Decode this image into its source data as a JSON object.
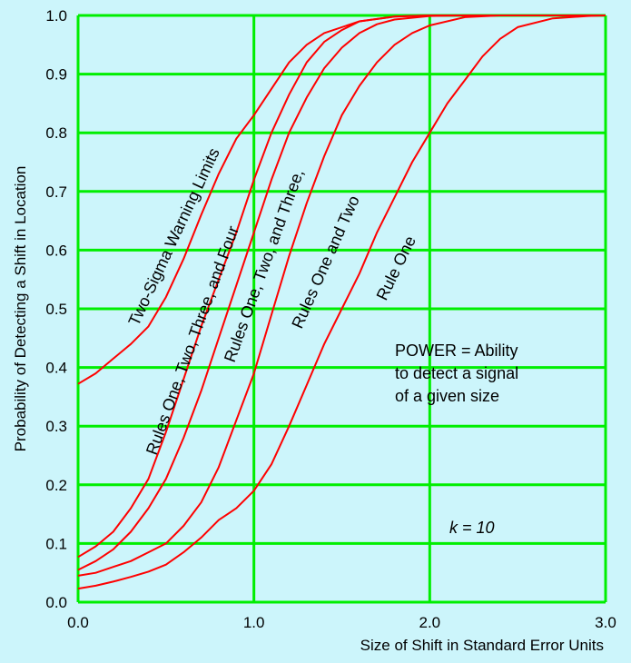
{
  "chart_data": {
    "type": "line",
    "xlabel": "Size of Shift in Standard Error Units",
    "ylabel": "Probability of Detecting a Shift in Location",
    "xlim": [
      0,
      3
    ],
    "ylim": [
      0,
      1
    ],
    "x_ticks": [
      "0.0",
      "1.0",
      "2.0",
      "3.0"
    ],
    "y_ticks": [
      "0.0",
      "0.1",
      "0.2",
      "0.3",
      "0.4",
      "0.5",
      "0.6",
      "0.7",
      "0.8",
      "0.9",
      "1.0"
    ],
    "grid": true,
    "line_color": "#ff0000",
    "grid_color": "#00ee00",
    "series": [
      {
        "name": "Two-Sigma Warning Limits",
        "points": [
          [
            0,
            0.372
          ],
          [
            0.1,
            0.39
          ],
          [
            0.2,
            0.415
          ],
          [
            0.3,
            0.44
          ],
          [
            0.4,
            0.47
          ],
          [
            0.5,
            0.52
          ],
          [
            0.6,
            0.585
          ],
          [
            0.7,
            0.66
          ],
          [
            0.8,
            0.73
          ],
          [
            0.9,
            0.79
          ],
          [
            1.0,
            0.83
          ],
          [
            1.1,
            0.875
          ],
          [
            1.2,
            0.92
          ],
          [
            1.3,
            0.95
          ],
          [
            1.4,
            0.97
          ],
          [
            1.6,
            0.99
          ],
          [
            1.8,
            0.998
          ],
          [
            2.0,
            1.0
          ],
          [
            3.0,
            1.0
          ]
        ]
      },
      {
        "name": "Rules One, Two, Three, and Four",
        "points": [
          [
            0,
            0.077
          ],
          [
            0.1,
            0.095
          ],
          [
            0.2,
            0.12
          ],
          [
            0.3,
            0.16
          ],
          [
            0.4,
            0.21
          ],
          [
            0.5,
            0.29
          ],
          [
            0.6,
            0.38
          ],
          [
            0.7,
            0.47
          ],
          [
            0.8,
            0.55
          ],
          [
            0.9,
            0.63
          ],
          [
            1.0,
            0.72
          ],
          [
            1.1,
            0.8
          ],
          [
            1.2,
            0.865
          ],
          [
            1.3,
            0.92
          ],
          [
            1.4,
            0.955
          ],
          [
            1.5,
            0.975
          ],
          [
            1.6,
            0.99
          ],
          [
            1.8,
            0.998
          ],
          [
            2.0,
            1.0
          ],
          [
            3.0,
            1.0
          ]
        ]
      },
      {
        "name": "Rules One, Two, and Three,",
        "points": [
          [
            0,
            0.055
          ],
          [
            0.1,
            0.07
          ],
          [
            0.2,
            0.09
          ],
          [
            0.3,
            0.12
          ],
          [
            0.4,
            0.16
          ],
          [
            0.5,
            0.21
          ],
          [
            0.6,
            0.28
          ],
          [
            0.7,
            0.36
          ],
          [
            0.8,
            0.45
          ],
          [
            0.9,
            0.54
          ],
          [
            1.0,
            0.63
          ],
          [
            1.1,
            0.72
          ],
          [
            1.2,
            0.8
          ],
          [
            1.3,
            0.86
          ],
          [
            1.4,
            0.91
          ],
          [
            1.5,
            0.945
          ],
          [
            1.6,
            0.97
          ],
          [
            1.7,
            0.985
          ],
          [
            1.8,
            0.993
          ],
          [
            2.0,
            0.999
          ],
          [
            2.2,
            1.0
          ],
          [
            3.0,
            1.0
          ]
        ]
      },
      {
        "name": "Rules One and Two",
        "points": [
          [
            0,
            0.045
          ],
          [
            0.1,
            0.05
          ],
          [
            0.2,
            0.06
          ],
          [
            0.3,
            0.07
          ],
          [
            0.4,
            0.085
          ],
          [
            0.5,
            0.1
          ],
          [
            0.6,
            0.13
          ],
          [
            0.7,
            0.17
          ],
          [
            0.8,
            0.23
          ],
          [
            0.9,
            0.31
          ],
          [
            1.0,
            0.39
          ],
          [
            1.1,
            0.49
          ],
          [
            1.2,
            0.59
          ],
          [
            1.3,
            0.68
          ],
          [
            1.4,
            0.76
          ],
          [
            1.5,
            0.83
          ],
          [
            1.6,
            0.88
          ],
          [
            1.7,
            0.92
          ],
          [
            1.8,
            0.95
          ],
          [
            1.9,
            0.97
          ],
          [
            2.0,
            0.983
          ],
          [
            2.2,
            0.997
          ],
          [
            2.4,
            1.0
          ],
          [
            3.0,
            1.0
          ]
        ]
      },
      {
        "name": "Rule One",
        "points": [
          [
            0,
            0.023
          ],
          [
            0.1,
            0.028
          ],
          [
            0.2,
            0.035
          ],
          [
            0.3,
            0.043
          ],
          [
            0.4,
            0.052
          ],
          [
            0.5,
            0.064
          ],
          [
            0.6,
            0.085
          ],
          [
            0.7,
            0.11
          ],
          [
            0.8,
            0.14
          ],
          [
            0.9,
            0.16
          ],
          [
            1.0,
            0.19
          ],
          [
            1.1,
            0.235
          ],
          [
            1.2,
            0.3
          ],
          [
            1.3,
            0.37
          ],
          [
            1.4,
            0.44
          ],
          [
            1.5,
            0.5
          ],
          [
            1.6,
            0.56
          ],
          [
            1.7,
            0.63
          ],
          [
            1.8,
            0.69
          ],
          [
            1.9,
            0.75
          ],
          [
            2.0,
            0.8
          ],
          [
            2.1,
            0.85
          ],
          [
            2.2,
            0.89
          ],
          [
            2.3,
            0.93
          ],
          [
            2.4,
            0.96
          ],
          [
            2.5,
            0.98
          ],
          [
            2.7,
            0.995
          ],
          [
            2.9,
            0.999
          ],
          [
            3.0,
            1.0
          ]
        ]
      }
    ],
    "curve_labels": [
      "Two-Sigma Warning Limits",
      "Rules One, Two, Three, and Four",
      "Rules One, Two, and Three,",
      "Rules One and Two",
      "Rule One"
    ],
    "annotations": {
      "power_line1": "POWER = Ability",
      "power_line2": "to detect a signal",
      "power_line3": "of a given size",
      "k_note": "k = 10"
    }
  }
}
